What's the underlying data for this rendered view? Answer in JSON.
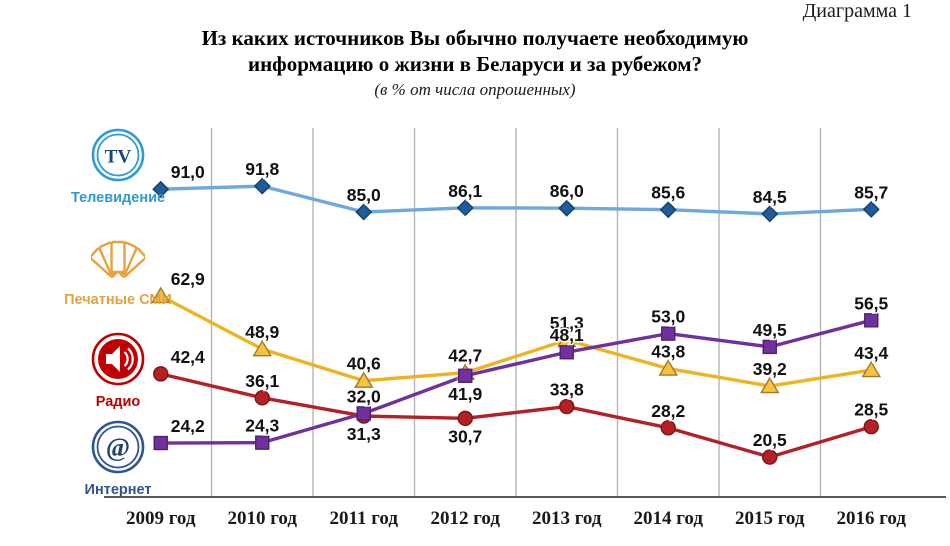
{
  "page": {
    "corner_label": "Диаграмма 1",
    "title_line1": "Из каких источников Вы обычно получаете необходимую",
    "title_line2": "информацию о жизни в Беларуси и за рубежом?",
    "subtitle": "(в % от числа опрошенных)"
  },
  "legend": {
    "items": [
      {
        "id": "tv",
        "label": "Телевидение",
        "icon": "tv-icon",
        "icon_glyph": "TV",
        "icon_color": "#2e9bd6",
        "label_color": "#2e9bd6"
      },
      {
        "id": "print",
        "label": "Печатные СМИ",
        "icon": "print-media-icon",
        "icon_glyph": "",
        "icon_color": "#e8a23c",
        "label_color": "#e8a23c"
      },
      {
        "id": "radio",
        "label": "Радио",
        "icon": "radio-icon",
        "icon_glyph": "",
        "icon_color": "#c00000",
        "label_color": "#c00000"
      },
      {
        "id": "internet",
        "label": "Интернет",
        "icon": "internet-icon",
        "icon_glyph": "@",
        "icon_color": "#2f5496",
        "label_color": "#2f5496"
      }
    ]
  },
  "chart_data": {
    "type": "line",
    "title": "Из каких источников Вы обычно получаете необходимую информацию о жизни в Беларуси и за рубежом?",
    "subtitle": "(в % от числа опрошенных)",
    "xlabel": "",
    "ylabel": "% от числа опрошенных",
    "ylim": [
      10,
      100
    ],
    "grid": "vertical-between-categories",
    "legend_position": "left",
    "categories": [
      "2009 год",
      "2010 год",
      "2011 год",
      "2012 год",
      "2013 год",
      "2014 год",
      "2015 год",
      "2016 год"
    ],
    "series": [
      {
        "id": "tv",
        "name": "Телевидение",
        "color": "#6fa8dc",
        "marker": "diamond",
        "marker_color": "#1f5c99",
        "marker_stroke": "#163f6b",
        "values": [
          91.0,
          91.8,
          85.0,
          86.1,
          86.0,
          85.6,
          84.5,
          85.7
        ],
        "labels": [
          "91,0",
          "91,8",
          "85,0",
          "86,1",
          "86,0",
          "85,6",
          "84,5",
          "85,7"
        ],
        "label_pos": [
          "above",
          "above",
          "above",
          "above",
          "above",
          "above",
          "above",
          "above"
        ]
      },
      {
        "id": "print",
        "name": "Печатные СМИ",
        "color": "#eeb320",
        "marker": "triangle",
        "marker_color": "#f5c242",
        "marker_stroke": "#a07a1f",
        "values": [
          62.9,
          48.9,
          40.6,
          42.7,
          51.3,
          43.8,
          39.2,
          43.4
        ],
        "labels": [
          "62,9",
          "48,9",
          "40,6",
          "42,7",
          "51,3",
          "43,8",
          "39,2",
          "43,4"
        ],
        "label_pos": [
          "above",
          "above",
          "above",
          "above",
          "above",
          "above",
          "above",
          "above"
        ]
      },
      {
        "id": "radio",
        "name": "Радио",
        "color": "#b42025",
        "marker": "circle",
        "marker_color": "#b42025",
        "marker_stroke": "#7d1418",
        "values": [
          42.4,
          36.1,
          31.3,
          30.7,
          33.8,
          28.2,
          20.5,
          28.5
        ],
        "labels": [
          "42,4",
          "36,1",
          "31,3",
          "30,7",
          "33,8",
          "28,2",
          "20,5",
          "28,5"
        ],
        "label_pos": [
          "above",
          "above",
          "below",
          "below",
          "above",
          "above",
          "above",
          "above"
        ]
      },
      {
        "id": "internet",
        "name": "Интернет",
        "color": "#7030a0",
        "marker": "square",
        "marker_color": "#7030a0",
        "marker_stroke": "#4f2170",
        "values": [
          24.2,
          24.3,
          32.0,
          41.9,
          48.1,
          53.0,
          49.5,
          56.5
        ],
        "labels": [
          "24,2",
          "24,3",
          "32,0",
          "41,9",
          "48,1",
          "53,0",
          "49,5",
          "56,5"
        ],
        "label_pos": [
          "above",
          "above",
          "above",
          "below",
          "above",
          "above",
          "above",
          "above"
        ]
      }
    ]
  }
}
